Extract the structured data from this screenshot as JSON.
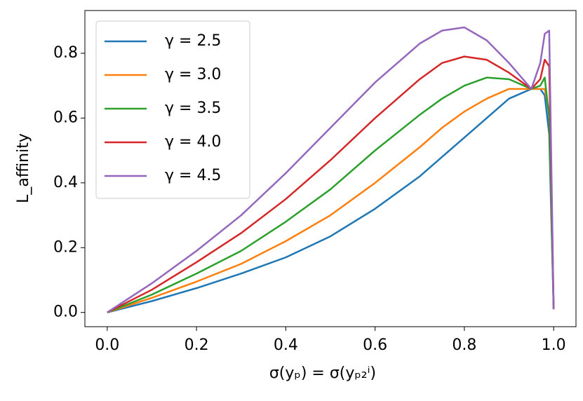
{
  "chart_data": {
    "type": "line",
    "xlabel": "σ(yₚ) = σ(yₚ₂ⁱ)",
    "ylabel": "L_affinity",
    "x": [
      0,
      0.1,
      0.2,
      0.3,
      0.4,
      0.5,
      0.6,
      0.7,
      0.75,
      0.8,
      0.85,
      0.9,
      0.95,
      0.97,
      0.98,
      0.99,
      1.0
    ],
    "series": [
      {
        "name": "γ = 2.5",
        "color": "#1f77b4",
        "values": [
          0,
          0.035,
          0.075,
          0.12,
          0.17,
          0.235,
          0.32,
          0.42,
          0.48,
          0.54,
          0.6,
          0.66,
          0.69,
          0.69,
          0.67,
          0.55,
          0.01
        ]
      },
      {
        "name": "γ = 3.0",
        "color": "#ff7f0e",
        "values": [
          0,
          0.045,
          0.095,
          0.15,
          0.22,
          0.3,
          0.4,
          0.51,
          0.57,
          0.62,
          0.66,
          0.69,
          0.69,
          0.69,
          0.69,
          0.62,
          0.01
        ]
      },
      {
        "name": "γ = 3.5",
        "color": "#2ca02c",
        "values": [
          0,
          0.055,
          0.12,
          0.19,
          0.28,
          0.38,
          0.5,
          0.61,
          0.66,
          0.7,
          0.725,
          0.72,
          0.69,
          0.7,
          0.725,
          0.6,
          0.01
        ]
      },
      {
        "name": "γ = 4.0",
        "color": "#d62728",
        "values": [
          0,
          0.07,
          0.155,
          0.245,
          0.35,
          0.47,
          0.6,
          0.72,
          0.77,
          0.79,
          0.78,
          0.74,
          0.69,
          0.72,
          0.78,
          0.76,
          0.01
        ]
      },
      {
        "name": "γ = 4.5",
        "color": "#9467bd",
        "values": [
          0,
          0.09,
          0.19,
          0.3,
          0.43,
          0.57,
          0.71,
          0.83,
          0.87,
          0.88,
          0.84,
          0.77,
          0.69,
          0.77,
          0.86,
          0.87,
          0.01
        ]
      }
    ],
    "xlim": [
      -0.05,
      1.05
    ],
    "ylim": [
      -0.044,
      0.932
    ],
    "xticks": [
      {
        "value": 0,
        "label": "0.0"
      },
      {
        "value": 0.2,
        "label": "0.2"
      },
      {
        "value": 0.4,
        "label": "0.4"
      },
      {
        "value": 0.6,
        "label": "0.6"
      },
      {
        "value": 0.8,
        "label": "0.8"
      },
      {
        "value": 1.0,
        "label": "1.0"
      }
    ],
    "yticks": [
      {
        "value": 0,
        "label": "0.0"
      },
      {
        "value": 0.2,
        "label": "0.2"
      },
      {
        "value": 0.4,
        "label": "0.4"
      },
      {
        "value": 0.6,
        "label": "0.6"
      },
      {
        "value": 0.8,
        "label": "0.8"
      }
    ],
    "grid": false,
    "legend": "upper-left"
  }
}
